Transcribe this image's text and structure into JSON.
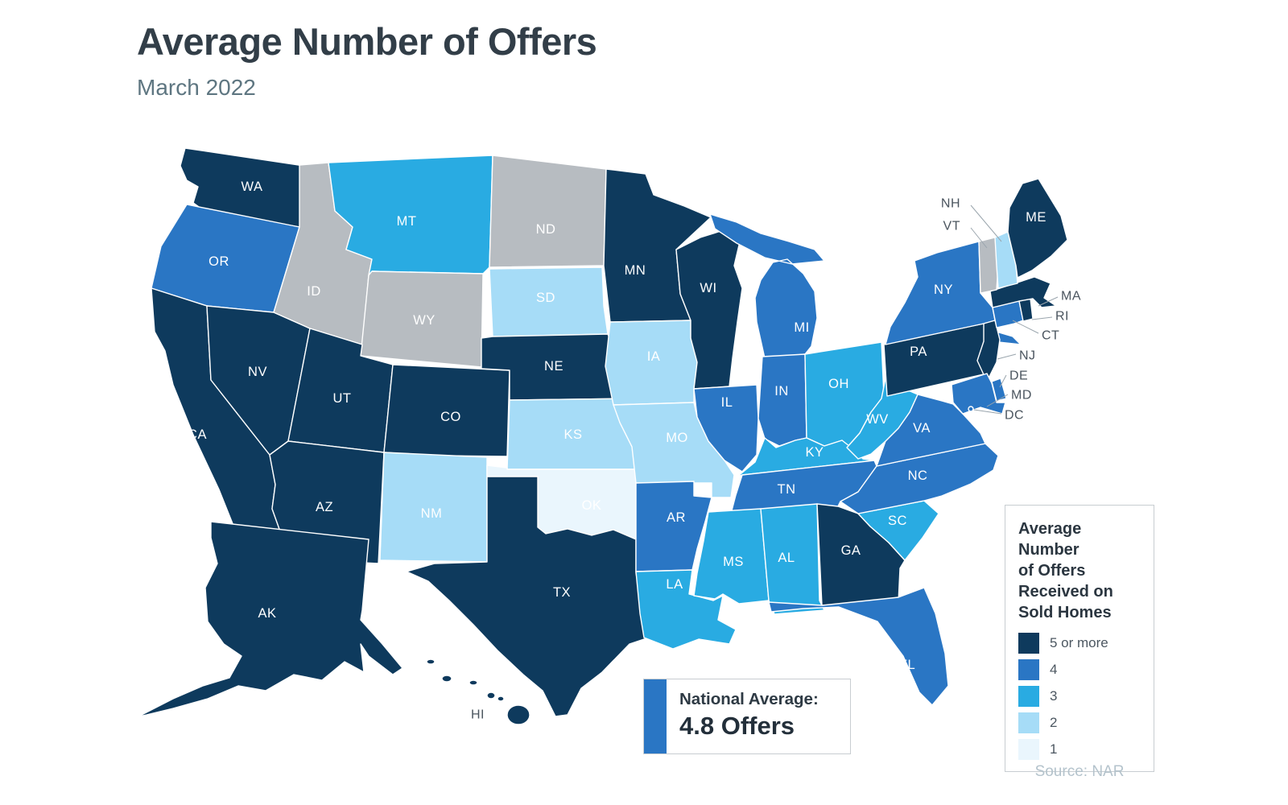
{
  "header": {
    "title": "Average Number of Offers",
    "subtitle": "March 2022"
  },
  "legend": {
    "title_lines": [
      "Average",
      "Number",
      "of Offers",
      "Received on",
      "Sold Homes"
    ],
    "items": [
      {
        "value": "5 or more",
        "label": "5 or more",
        "color": "#0e3a5d"
      },
      {
        "value": "4",
        "label": "4",
        "color": "#2a76c4"
      },
      {
        "value": "3",
        "label": "3",
        "color": "#29abe2"
      },
      {
        "value": "2",
        "label": "2",
        "color": "#a6dcf7"
      },
      {
        "value": "1",
        "label": "1",
        "color": "#eaf6fd"
      }
    ],
    "no_data_color": "#b7bcc1"
  },
  "callout": {
    "label": "National Average:",
    "value": "4.8 Offers",
    "accent_color": "#2a76c4"
  },
  "source": "Source: NAR",
  "chart_data": {
    "type": "choropleth_map",
    "title": "Average Number of Offers",
    "subtitle": "March 2022",
    "unit": "offers received on sold homes",
    "national_average": 4.8,
    "legend_position": "right",
    "categories": [
      "5 or more",
      "4",
      "3",
      "2",
      "1",
      "no data"
    ],
    "states": {
      "WA": "5 or more",
      "OR": "4",
      "CA": "5 or more",
      "NV": "5 or more",
      "ID": "no data",
      "MT": "3",
      "WY": "no data",
      "UT": "5 or more",
      "CO": "5 or more",
      "AZ": "5 or more",
      "NM": "2",
      "ND": "no data",
      "SD": "2",
      "NE": "5 or more",
      "KS": "2",
      "OK": "1",
      "TX": "5 or more",
      "MN": "5 or more",
      "IA": "2",
      "MO": "2",
      "AR": "4",
      "LA": "3",
      "WI": "5 or more",
      "IL": "4",
      "MI": "4",
      "IN": "4",
      "OH": "3",
      "KY": "3",
      "TN": "4",
      "MS": "3",
      "AL": "3",
      "GA": "5 or more",
      "FL": "4",
      "SC": "3",
      "NC": "4",
      "VA": "4",
      "WV": "3",
      "PA": "5 or more",
      "NY": "4",
      "NJ": "5 or more",
      "CT": "4",
      "RI": "5 or more",
      "MA": "5 or more",
      "VT": "no data",
      "NH": "2",
      "ME": "5 or more",
      "DE": "4",
      "MD": "4",
      "DC": "4",
      "AK": "5 or more",
      "HI": "5 or more"
    }
  }
}
